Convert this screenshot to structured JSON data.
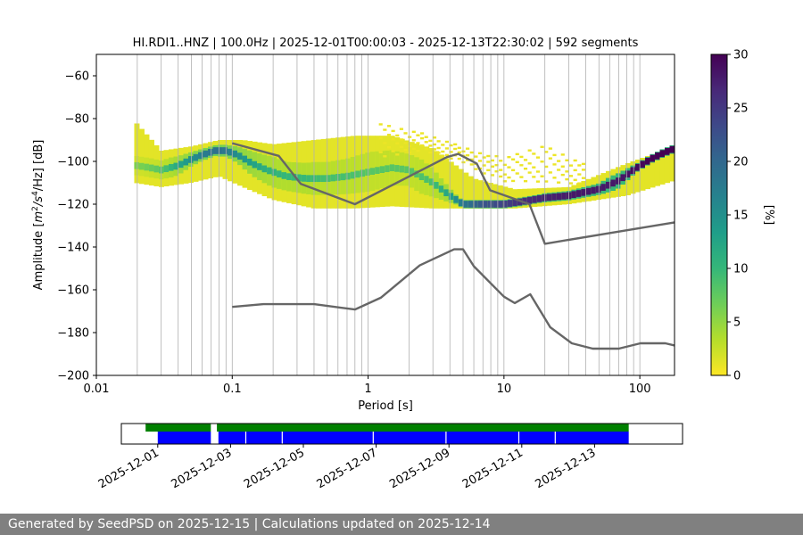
{
  "chart_data": [
    {
      "type": "heatmap",
      "title": "HI.RDI1..HNZ | 100.0Hz | 2025-12-01T00:00:03 - 2025-12-13T22:30:02 | 592 segments",
      "xlabel": "Period [s]",
      "ylabel": "Amplitude [$m^2/s^4/Hz$] [dB]",
      "ylabel_parts": {
        "pre": "Amplitude [",
        "base1": "m",
        "sup1": "2",
        "mid": "/s",
        "sup2": "4",
        "post": "/Hz] [dB]"
      },
      "x_scale": "log",
      "xlim": [
        0.01,
        180
      ],
      "ylim": [
        -200,
        -50
      ],
      "x_ticks": [
        0.01,
        0.1,
        1,
        10,
        100
      ],
      "x_tick_labels": [
        "0.01",
        "0.1",
        "1",
        "10",
        "100"
      ],
      "y_ticks": [
        -200,
        -180,
        -160,
        -140,
        -120,
        -100,
        -80,
        -60
      ],
      "y_tick_labels": [
        "−200",
        "−180",
        "−160",
        "−140",
        "−120",
        "−100",
        "−80",
        "−60"
      ],
      "grid": "period lines",
      "colorbar": {
        "label": "[%]",
        "range": [
          0,
          30
        ],
        "ticks": [
          0,
          5,
          10,
          15,
          20,
          25,
          30
        ],
        "tick_labels": [
          "0",
          "5",
          "10",
          "15",
          "20",
          "25",
          "30"
        ],
        "colormap": [
          "#fde725",
          "#b5de2b",
          "#6ece58",
          "#35b779",
          "#1f9e89",
          "#26828e",
          "#31688e",
          "#3e4989",
          "#482878",
          "#440154"
        ]
      },
      "series": [
        {
          "kind": "psd_mode",
          "points": [
            {
              "x": 0.02,
              "y": -102,
              "pct": 6
            },
            {
              "x": 0.025,
              "y": -103,
              "pct": 7
            },
            {
              "x": 0.03,
              "y": -104,
              "pct": 8
            },
            {
              "x": 0.04,
              "y": -102,
              "pct": 12
            },
            {
              "x": 0.05,
              "y": -99,
              "pct": 15
            },
            {
              "x": 0.06,
              "y": -97,
              "pct": 17
            },
            {
              "x": 0.075,
              "y": -95,
              "pct": 19
            },
            {
              "x": 0.09,
              "y": -95,
              "pct": 18
            },
            {
              "x": 0.11,
              "y": -97,
              "pct": 15
            },
            {
              "x": 0.14,
              "y": -101,
              "pct": 13
            },
            {
              "x": 0.18,
              "y": -104,
              "pct": 11
            },
            {
              "x": 0.25,
              "y": -107,
              "pct": 10
            },
            {
              "x": 0.35,
              "y": -108,
              "pct": 10
            },
            {
              "x": 0.5,
              "y": -108,
              "pct": 9
            },
            {
              "x": 0.7,
              "y": -107,
              "pct": 9
            },
            {
              "x": 1.0,
              "y": -105,
              "pct": 8
            },
            {
              "x": 1.5,
              "y": -103,
              "pct": 8
            },
            {
              "x": 2.0,
              "y": -104,
              "pct": 8
            },
            {
              "x": 3.0,
              "y": -110,
              "pct": 9
            },
            {
              "x": 4.0,
              "y": -116,
              "pct": 13
            },
            {
              "x": 5.0,
              "y": -120,
              "pct": 18
            },
            {
              "x": 7.0,
              "y": -120,
              "pct": 22
            },
            {
              "x": 10.0,
              "y": -120,
              "pct": 24
            },
            {
              "x": 13.0,
              "y": -119,
              "pct": 26
            },
            {
              "x": 20.0,
              "y": -117,
              "pct": 27
            },
            {
              "x": 30.0,
              "y": -116,
              "pct": 28
            },
            {
              "x": 50.0,
              "y": -113,
              "pct": 28
            },
            {
              "x": 70.0,
              "y": -109,
              "pct": 28
            },
            {
              "x": 90.0,
              "y": -104,
              "pct": 29
            },
            {
              "x": 120.0,
              "y": -99,
              "pct": 30
            },
            {
              "x": 150.0,
              "y": -96,
              "pct": 30
            },
            {
              "x": 180.0,
              "y": -94,
              "pct": 30
            }
          ],
          "band": [
            {
              "x": 0.019,
              "lo": -110,
              "hi": -81
            },
            {
              "x": 0.03,
              "lo": -112,
              "hi": -95
            },
            {
              "x": 0.05,
              "lo": -110,
              "hi": -93
            },
            {
              "x": 0.08,
              "lo": -107,
              "hi": -90
            },
            {
              "x": 0.12,
              "lo": -112,
              "hi": -90
            },
            {
              "x": 0.2,
              "lo": -118,
              "hi": -92
            },
            {
              "x": 0.4,
              "lo": -122,
              "hi": -90
            },
            {
              "x": 0.8,
              "lo": -122,
              "hi": -88
            },
            {
              "x": 1.5,
              "lo": -121,
              "hi": -88
            },
            {
              "x": 3.0,
              "lo": -122,
              "hi": -94
            },
            {
              "x": 6.0,
              "lo": -122,
              "hi": -108
            },
            {
              "x": 12.0,
              "lo": -122,
              "hi": -113
            },
            {
              "x": 30.0,
              "lo": -120,
              "hi": -112
            },
            {
              "x": 80.0,
              "lo": -116,
              "hi": -101
            },
            {
              "x": 180.0,
              "lo": -109,
              "hi": -93
            }
          ],
          "extra_band": [
            {
              "x": 1.2,
              "lo": -100,
              "hi": -82
            },
            {
              "x": 2.5,
              "lo": -95,
              "hi": -86
            },
            {
              "x": 5.0,
              "lo": -100,
              "hi": -92
            },
            {
              "x": 10.0,
              "lo": -110,
              "hi": -98
            },
            {
              "x": 20.0,
              "lo": -110,
              "hi": -91
            },
            {
              "x": 40.0,
              "lo": -110,
              "hi": -100
            }
          ]
        },
        {
          "kind": "nhnm",
          "points": [
            {
              "x": 0.1,
              "y": -91.5
            },
            {
              "x": 0.22,
              "y": -97.4
            },
            {
              "x": 0.32,
              "y": -110.5
            },
            {
              "x": 0.8,
              "y": -120
            },
            {
              "x": 3.8,
              "y": -98
            },
            {
              "x": 4.6,
              "y": -96.5
            },
            {
              "x": 6.3,
              "y": -101
            },
            {
              "x": 7.9,
              "y": -113.5
            },
            {
              "x": 15.4,
              "y": -120
            },
            {
              "x": 20,
              "y": -138.5
            },
            {
              "x": 180,
              "y": -128.5
            }
          ]
        },
        {
          "kind": "nlnm",
          "points": [
            {
              "x": 0.1,
              "y": -168
            },
            {
              "x": 0.17,
              "y": -166.7
            },
            {
              "x": 0.4,
              "y": -166.7
            },
            {
              "x": 0.8,
              "y": -169.2
            },
            {
              "x": 1.24,
              "y": -163.7
            },
            {
              "x": 2.4,
              "y": -148.6
            },
            {
              "x": 4.3,
              "y": -141.1
            },
            {
              "x": 5.0,
              "y": -141.1
            },
            {
              "x": 6.0,
              "y": -149
            },
            {
              "x": 10.0,
              "y": -163.2
            },
            {
              "x": 12.0,
              "y": -166.2
            },
            {
              "x": 15.6,
              "y": -162.1
            },
            {
              "x": 21.9,
              "y": -177.5
            },
            {
              "x": 31.6,
              "y": -185
            },
            {
              "x": 45,
              "y": -187.5
            },
            {
              "x": 70,
              "y": -187.5
            },
            {
              "x": 101,
              "y": -185
            },
            {
              "x": 154,
              "y": -185
            },
            {
              "x": 180,
              "y": -186
            }
          ]
        }
      ]
    },
    {
      "type": "timeline",
      "x_tick_labels": [
        "2025-12-01",
        "2025-12-03",
        "2025-12-05",
        "2025-12-07",
        "2025-12-09",
        "2025-12-11",
        "2025-12-13"
      ],
      "x_ticks": [
        "2025-12-01",
        "2025-12-03",
        "2025-12-05",
        "2025-12-07",
        "2025-12-09",
        "2025-12-11",
        "2025-12-13"
      ],
      "xlim": [
        "2025-11-30T00:00",
        "2025-12-15T10:00"
      ],
      "series": [
        {
          "name": "",
          "color": "#008000",
          "segments": [
            [
              "2025-11-30T16:00",
              "2025-12-02T11:00"
            ],
            [
              "2025-12-02T15:00",
              "2025-12-13T22:30"
            ]
          ]
        },
        {
          "name": "",
          "color": "#0000ff",
          "segments": [
            [
              "2025-12-01T00:00",
              "2025-12-02T11:00"
            ],
            [
              "2025-12-02T16:00",
              "2025-12-13T22:30"
            ]
          ],
          "gaps": [
            "2025-12-03T10:00",
            "2025-12-04T10:00",
            "2025-12-06T22:00",
            "2025-12-08T22:00",
            "2025-12-10T22:00",
            "2025-12-11T22:00"
          ]
        }
      ]
    }
  ],
  "footer": {
    "text": "Generated by SeedPSD on 2025-12-15 | Calculations updated on 2025-12-14"
  }
}
